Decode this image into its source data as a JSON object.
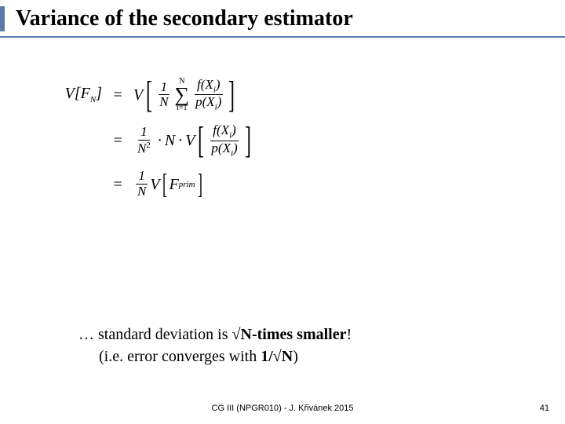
{
  "title": "Variance of the secondary estimator",
  "title_fontsize": 28,
  "title_fontweight": "bold",
  "title_color": "#000000",
  "accent_color": "#5b7aa8",
  "rule_color": "#5b7aa8",
  "background_color": "#ffffff",
  "equations": {
    "font_family": "Times New Roman",
    "font_style": "italic",
    "base_fontsize": 20,
    "rows": [
      {
        "lhs": "V[F_N]",
        "eq": "=",
        "rhs_description": "V[ (1/N) Σ_{i=1}^{N} f(X_i)/p(X_i) ]"
      },
      {
        "lhs": "",
        "eq": "=",
        "rhs_description": "(1/N^2) · N · V[ f(X_i)/p(X_i) ]"
      },
      {
        "lhs": "",
        "eq": "=",
        "rhs_description": "(1/N) V[ F_prim ]"
      }
    ],
    "symbols": {
      "V": "V",
      "F": "F",
      "N": "N",
      "f": "f",
      "p": "p",
      "X": "X",
      "i": "i",
      "prim": "prim",
      "one": "1",
      "two": "2",
      "dot": "·",
      "sigma_lower": "i=1",
      "sigma_upper": "N"
    }
  },
  "conclusion": {
    "line1_prefix": "… standard deviation is ",
    "line1_bold": "N-times smaller",
    "line1_sqrt": "√",
    "line1_suffix": "!",
    "line2_prefix": "(i.e. error converges with ",
    "line2_bold1": "1/",
    "line2_sqrt": "√",
    "line2_bold2": "N",
    "line2_suffix": ")",
    "fontsize": 20
  },
  "footer": {
    "text": "CG III (NPGR010) - J. Křivánek 2015",
    "fontsize": 11
  },
  "page_number": "41"
}
